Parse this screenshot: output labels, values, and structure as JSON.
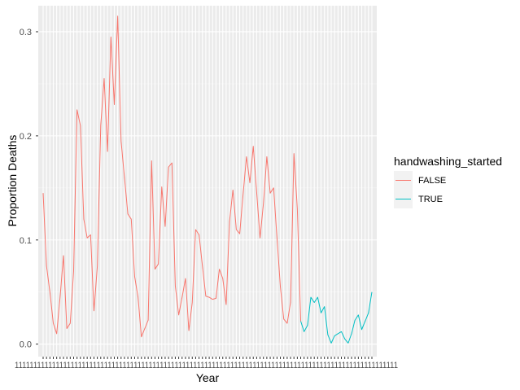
{
  "chart_data": {
    "type": "line",
    "title": "",
    "xlabel": "Year",
    "ylabel": "Proportion Deaths",
    "ylim": [
      -0.012,
      0.325
    ],
    "yticks": [
      0.0,
      0.1,
      0.2,
      0.3
    ],
    "ytick_labels": [
      "0.0",
      "0.1",
      "0.2",
      "0.3"
    ],
    "x_tick_text": "1111111111111111111111111111111111111111111111111111111111111111111111111111111111111111111111111111111",
    "legend": {
      "title": "handwashing_started",
      "position": "right",
      "entries": [
        {
          "label": "FALSE",
          "color": "#F8766D"
        },
        {
          "label": "TRUE",
          "color": "#00BFC4"
        }
      ]
    },
    "x_count": 98,
    "series": [
      {
        "name": "FALSE",
        "color": "#F8766D",
        "start_index": 0,
        "values": [
          0.145,
          0.075,
          0.05,
          0.02,
          0.01,
          0.045,
          0.085,
          0.015,
          0.02,
          0.07,
          0.225,
          0.21,
          0.12,
          0.102,
          0.105,
          0.032,
          0.075,
          0.21,
          0.255,
          0.185,
          0.295,
          0.23,
          0.315,
          0.195,
          0.16,
          0.125,
          0.12,
          0.065,
          0.045,
          0.007,
          0.015,
          0.023,
          0.176,
          0.072,
          0.077,
          0.151,
          0.113,
          0.17,
          0.174,
          0.056,
          0.028,
          0.045,
          0.063,
          0.013,
          0.04,
          0.11,
          0.105,
          0.075,
          0.046,
          0.045,
          0.043,
          0.044,
          0.072,
          0.063,
          0.038,
          0.118,
          0.148,
          0.11,
          0.106,
          0.144,
          0.18,
          0.155,
          0.19,
          0.146,
          0.102,
          0.135,
          0.18,
          0.145,
          0.15,
          0.102,
          0.055,
          0.024,
          0.02,
          0.04,
          0.183,
          0.13,
          0.022
        ]
      },
      {
        "name": "TRUE",
        "color": "#00BFC4",
        "start_index": 76,
        "values": [
          0.022,
          0.012,
          0.018,
          0.045,
          0.04,
          0.045,
          0.03,
          0.036,
          0.009,
          0.001,
          0.008,
          0.01,
          0.012,
          0.005,
          0.001,
          0.01,
          0.023,
          0.028,
          0.014,
          0.022,
          0.03,
          0.05
        ]
      }
    ]
  }
}
